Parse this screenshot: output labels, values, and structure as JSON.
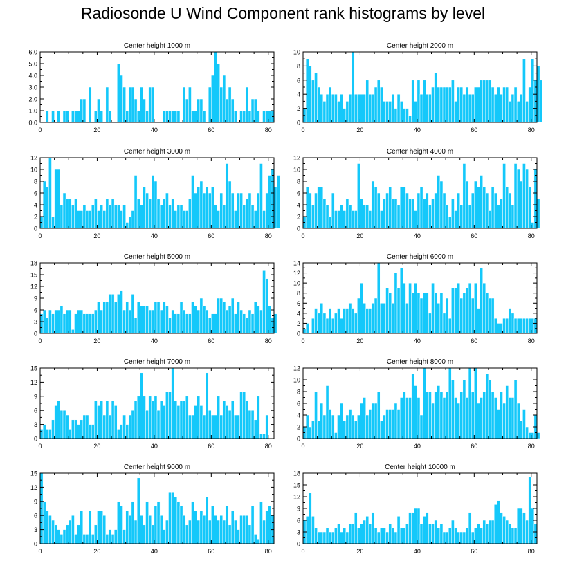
{
  "title": "Radiosonde U Wind Component rank histograms by level",
  "colors": {
    "bar": "#14c8fa",
    "bar_edge": "#ffffff",
    "axis": "#000000"
  },
  "chart_data": [
    {
      "type": "bar",
      "title": "Center height 1000 m",
      "xlim": [
        0,
        82
      ],
      "ylim": [
        0,
        6
      ],
      "yticks": [
        0,
        1,
        2,
        3,
        4,
        5,
        6
      ],
      "ytick_labels": [
        "0.0",
        "1.0",
        "2.0",
        "3.0",
        "4.0",
        "5.0",
        "6.0"
      ],
      "xticks": [
        0,
        20,
        40,
        60,
        80
      ],
      "values": [
        0,
        0,
        1,
        0,
        1,
        0,
        1,
        0,
        1,
        1,
        0,
        1,
        1,
        1,
        2,
        2,
        0,
        3,
        0,
        1,
        2,
        1,
        0,
        3,
        1,
        0,
        0,
        5,
        4,
        3,
        1,
        3,
        3,
        2,
        1,
        3,
        2,
        1,
        3,
        3,
        0,
        0,
        0,
        1,
        1,
        1,
        1,
        1,
        1,
        0,
        3,
        2,
        3,
        1,
        1,
        2,
        2,
        1,
        0,
        3,
        4,
        6,
        5,
        3,
        4,
        2,
        3,
        2,
        1,
        0,
        1,
        1,
        3,
        1,
        2,
        2,
        1,
        0,
        1,
        1,
        1,
        1
      ]
    },
    {
      "type": "bar",
      "title": "Center height 2000 m",
      "xlim": [
        0,
        82
      ],
      "ylim": [
        0,
        10
      ],
      "yticks": [
        0,
        2,
        4,
        6,
        8,
        10
      ],
      "ytick_labels": [
        "0",
        "2",
        "4",
        "6",
        "8",
        "10"
      ],
      "xticks": [
        0,
        20,
        40,
        60,
        80
      ],
      "values": [
        2,
        9,
        8,
        6,
        7,
        5,
        4,
        3,
        4,
        5,
        4,
        4,
        3,
        4,
        2,
        3,
        4,
        10,
        4,
        4,
        4,
        4,
        6,
        4,
        4,
        5,
        6,
        5,
        3,
        3,
        3,
        4,
        2,
        4,
        3,
        2,
        2,
        1,
        6,
        3,
        6,
        4,
        6,
        4,
        4,
        5,
        7,
        5,
        5,
        5,
        5,
        5,
        6,
        3,
        5,
        5,
        4,
        5,
        4,
        4,
        5,
        5,
        6,
        6,
        6,
        6,
        5,
        4,
        5,
        4,
        5,
        5,
        3,
        4,
        5,
        3,
        4,
        9,
        3,
        5,
        9,
        6,
        8,
        6
      ]
    },
    {
      "type": "bar",
      "title": "Center height 3000 m",
      "xlim": [
        0,
        82
      ],
      "ylim": [
        0,
        12
      ],
      "yticks": [
        0,
        2,
        4,
        6,
        8,
        10,
        12
      ],
      "ytick_labels": [
        "0",
        "2",
        "4",
        "6",
        "8",
        "10",
        "12"
      ],
      "xticks": [
        0,
        20,
        40,
        60,
        80
      ],
      "values": [
        2,
        8,
        7,
        12,
        2,
        10,
        10,
        4,
        6,
        5,
        5,
        4,
        5,
        3,
        3,
        4,
        3,
        3,
        4,
        5,
        3,
        4,
        3,
        5,
        4,
        5,
        4,
        4,
        3,
        4,
        1,
        2,
        3,
        9,
        5,
        4,
        7,
        6,
        5,
        9,
        8,
        5,
        4,
        5,
        6,
        4,
        5,
        3,
        4,
        4,
        3,
        3,
        5,
        9,
        6,
        7,
        8,
        6,
        7,
        6,
        7,
        4,
        3,
        6,
        4,
        11,
        8,
        6,
        3,
        6,
        6,
        4,
        5,
        6,
        4,
        3,
        6,
        11,
        3,
        6,
        9,
        10,
        7,
        9
      ]
    },
    {
      "type": "bar",
      "title": "Center height 4000 m",
      "xlim": [
        0,
        82
      ],
      "ylim": [
        0,
        12
      ],
      "yticks": [
        0,
        2,
        4,
        6,
        8,
        10,
        12
      ],
      "ytick_labels": [
        "0",
        "2",
        "4",
        "6",
        "8",
        "10",
        "12"
      ],
      "xticks": [
        0,
        20,
        40,
        60,
        80
      ],
      "values": [
        2,
        7,
        6,
        4,
        6,
        7,
        7,
        5,
        4,
        2,
        6,
        3,
        3,
        4,
        3,
        5,
        4,
        3,
        3,
        11,
        5,
        4,
        4,
        3,
        8,
        7,
        6,
        3,
        5,
        6,
        7,
        5,
        5,
        4,
        7,
        7,
        6,
        5,
        5,
        3,
        6,
        7,
        5,
        6,
        4,
        5,
        6,
        9,
        8,
        6,
        4,
        2,
        5,
        3,
        6,
        4,
        11,
        8,
        4,
        6,
        8,
        7,
        9,
        7,
        6,
        3,
        7,
        6,
        4,
        5,
        11,
        7,
        6,
        4,
        11,
        10,
        8,
        11,
        10,
        7,
        1,
        10,
        5
      ]
    },
    {
      "type": "bar",
      "title": "Center height 5000 m",
      "xlim": [
        0,
        82
      ],
      "ylim": [
        0,
        18
      ],
      "yticks": [
        0,
        3,
        6,
        9,
        12,
        15,
        18
      ],
      "ytick_labels": [
        "0",
        "3",
        "6",
        "9",
        "12",
        "15",
        "18"
      ],
      "xticks": [
        0,
        20,
        40,
        60,
        80
      ],
      "values": [
        5,
        6,
        4,
        6,
        5,
        6,
        6,
        7,
        5,
        6,
        6,
        1,
        5,
        6,
        6,
        5,
        5,
        5,
        5,
        6,
        8,
        6,
        8,
        8,
        10,
        10,
        8,
        10,
        11,
        6,
        8,
        6,
        10,
        4,
        8,
        7,
        7,
        7,
        6,
        6,
        8,
        8,
        6,
        8,
        7,
        4,
        6,
        5,
        5,
        8,
        6,
        5,
        5,
        8,
        7,
        6,
        9,
        7,
        6,
        4,
        5,
        5,
        9,
        9,
        8,
        6,
        7,
        9,
        5,
        8,
        6,
        5,
        4,
        6,
        5,
        8,
        7,
        6,
        16,
        14,
        7,
        4,
        5
      ]
    },
    {
      "type": "bar",
      "title": "Center height 6000 m",
      "xlim": [
        0,
        82
      ],
      "ylim": [
        0,
        14
      ],
      "yticks": [
        0,
        2,
        4,
        6,
        8,
        10,
        12,
        14
      ],
      "ytick_labels": [
        "0",
        "2",
        "4",
        "6",
        "8",
        "10",
        "12",
        "14"
      ],
      "xticks": [
        0,
        20,
        40,
        60,
        80
      ],
      "values": [
        1,
        2,
        0,
        3,
        5,
        4,
        6,
        4,
        3,
        5,
        3,
        4,
        5,
        3,
        5,
        5,
        6,
        5,
        4,
        7,
        10,
        6,
        5,
        5,
        6,
        7,
        14,
        6,
        6,
        9,
        8,
        6,
        12,
        9,
        13,
        10,
        6,
        10,
        8,
        10,
        8,
        7,
        8,
        8,
        4,
        10,
        8,
        6,
        8,
        4,
        7,
        3,
        9,
        9,
        10,
        7,
        8,
        9,
        10,
        7,
        10,
        5,
        13,
        10,
        8,
        7,
        7,
        3,
        2,
        2,
        3,
        3,
        5,
        4,
        3,
        3,
        3,
        3,
        3,
        3,
        3,
        3
      ]
    },
    {
      "type": "bar",
      "title": "Center height 7000 m",
      "xlim": [
        0,
        82
      ],
      "ylim": [
        0,
        15
      ],
      "yticks": [
        0,
        3,
        6,
        9,
        12,
        15
      ],
      "ytick_labels": [
        "0",
        "3",
        "6",
        "9",
        "12",
        "15"
      ],
      "xticks": [
        0,
        20,
        40,
        60,
        80
      ],
      "values": [
        2,
        3,
        2,
        2,
        4,
        7,
        8,
        6,
        6,
        5,
        2,
        4,
        4,
        3,
        4,
        5,
        5,
        3,
        3,
        8,
        7,
        8,
        5,
        8,
        5,
        8,
        7,
        2,
        3,
        5,
        3,
        5,
        6,
        8,
        9,
        14,
        9,
        6,
        9,
        8,
        9,
        6,
        8,
        7,
        10,
        10,
        15,
        8,
        7,
        8,
        8,
        9,
        5,
        5,
        7,
        9,
        7,
        5,
        14,
        6,
        5,
        5,
        9,
        5,
        8,
        7,
        6,
        8,
        5,
        5,
        10,
        10,
        8,
        6,
        6,
        4,
        9,
        1,
        1,
        5
      ]
    },
    {
      "type": "bar",
      "title": "Center height 8000 m",
      "xlim": [
        0,
        82
      ],
      "ylim": [
        0,
        12
      ],
      "yticks": [
        0,
        2,
        4,
        6,
        8,
        10,
        12
      ],
      "ytick_labels": [
        "0",
        "2",
        "4",
        "6",
        "8",
        "10",
        "12"
      ],
      "xticks": [
        0,
        20,
        40,
        60,
        80
      ],
      "values": [
        2,
        4,
        2,
        3,
        8,
        3,
        6,
        4,
        9,
        5,
        4,
        1,
        4,
        6,
        3,
        4,
        5,
        4,
        3,
        4,
        6,
        7,
        4,
        5,
        6,
        6,
        8,
        3,
        4,
        5,
        5,
        5,
        6,
        5,
        7,
        8,
        7,
        7,
        11,
        9,
        7,
        4,
        12,
        8,
        8,
        6,
        8,
        9,
        8,
        7,
        8,
        12,
        10,
        7,
        6,
        8,
        10,
        7,
        12,
        8,
        12,
        6,
        7,
        8,
        11,
        10,
        8,
        7,
        5,
        8,
        6,
        9,
        7,
        7,
        10,
        6,
        3,
        5,
        2,
        1,
        1,
        4,
        1
      ]
    },
    {
      "type": "bar",
      "title": "Center height 9000 m",
      "xlim": [
        0,
        82
      ],
      "ylim": [
        0,
        15
      ],
      "yticks": [
        0,
        3,
        6,
        9,
        12,
        15
      ],
      "ytick_labels": [
        "0",
        "3",
        "6",
        "9",
        "12",
        "15"
      ],
      "xticks": [
        0,
        20,
        40,
        60,
        80
      ],
      "values": [
        15,
        9,
        7,
        6,
        5,
        4,
        3,
        2,
        3,
        4,
        5,
        6,
        2,
        4,
        7,
        2,
        2,
        7,
        2,
        4,
        7,
        7,
        6,
        2,
        3,
        2,
        3,
        9,
        8,
        3,
        7,
        6,
        9,
        5,
        14,
        6,
        4,
        9,
        6,
        4,
        8,
        9,
        6,
        3,
        5,
        11,
        11,
        10,
        9,
        8,
        6,
        4,
        5,
        9,
        7,
        5,
        7,
        6,
        10,
        5,
        8,
        6,
        5,
        6,
        5,
        8,
        4,
        7,
        5,
        3,
        6,
        6,
        6,
        4,
        8,
        2,
        1,
        9,
        5,
        7,
        8,
        6
      ]
    },
    {
      "type": "bar",
      "title": "Center height 10000 m",
      "xlim": [
        0,
        82
      ],
      "ylim": [
        0,
        18
      ],
      "yticks": [
        0,
        3,
        6,
        9,
        12,
        15,
        18
      ],
      "ytick_labels": [
        "0",
        "3",
        "6",
        "9",
        "12",
        "15",
        "18"
      ],
      "xticks": [
        0,
        20,
        40,
        60,
        80
      ],
      "values": [
        6,
        7,
        13,
        7,
        4,
        3,
        3,
        3,
        4,
        3,
        3,
        4,
        5,
        3,
        4,
        3,
        5,
        5,
        8,
        4,
        5,
        6,
        7,
        5,
        8,
        4,
        3,
        4,
        4,
        3,
        5,
        4,
        3,
        7,
        4,
        4,
        5,
        8,
        8,
        9,
        9,
        5,
        7,
        8,
        5,
        5,
        6,
        4,
        5,
        3,
        3,
        4,
        6,
        4,
        3,
        3,
        3,
        4,
        8,
        3,
        4,
        5,
        4,
        6,
        5,
        6,
        6,
        10,
        11,
        8,
        7,
        6,
        5,
        4,
        4,
        9,
        9,
        8,
        6,
        17,
        9,
        5
      ]
    }
  ]
}
